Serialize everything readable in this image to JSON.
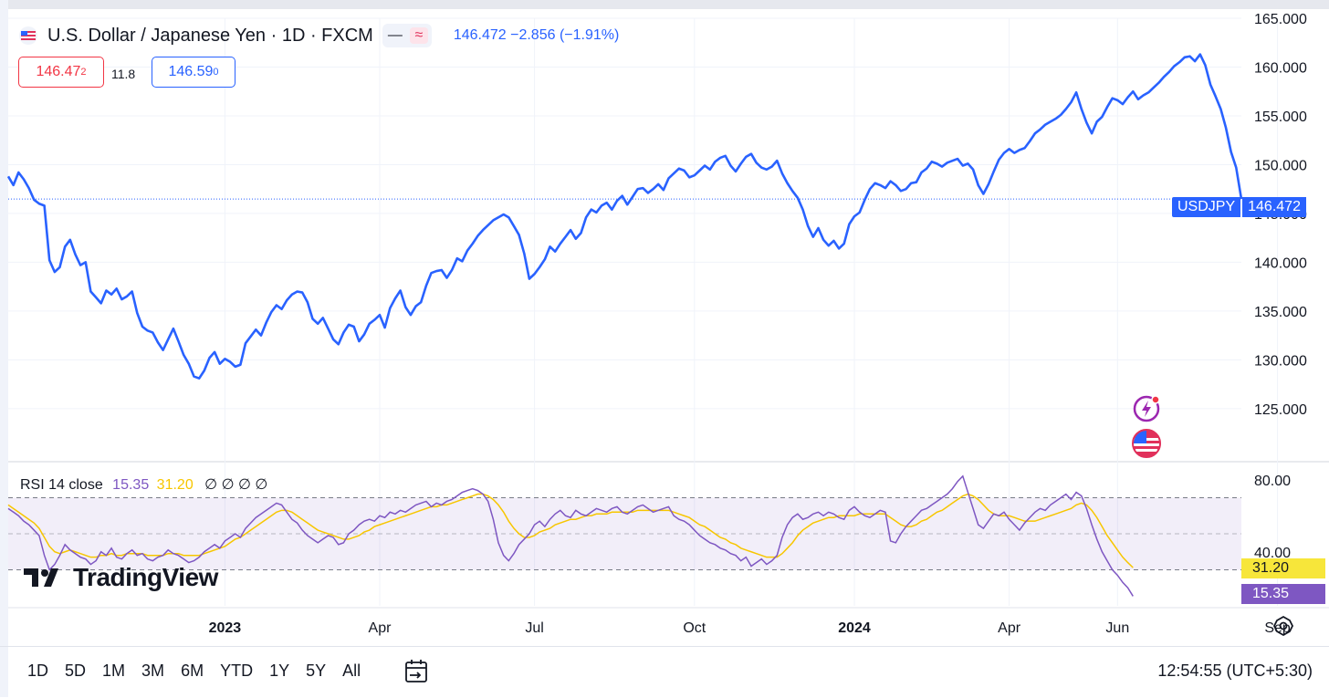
{
  "header": {
    "title": "U.S. Dollar / Japanese Yen · 1D · FXCM",
    "quote": "146.472 −2.856 (−1.91%)",
    "sell_price": "146.47",
    "sell_sup": "2",
    "spread": "11.8",
    "buy_price": "146.59",
    "buy_sup": "0"
  },
  "rsi_legend": {
    "name": "RSI 14 close",
    "rsi_value": "15.35",
    "ma_value": "31.20",
    "na_values": [
      "∅",
      "∅",
      "∅",
      "∅"
    ]
  },
  "tags": {
    "symbol": "USDJPY",
    "last_price": "146.472",
    "rsi_ma": "31.20",
    "rsi": "15.35"
  },
  "watermark": "TradingView",
  "time_ranges": [
    "1D",
    "5D",
    "1M",
    "3M",
    "6M",
    "YTD",
    "1Y",
    "5Y",
    "All"
  ],
  "clock": "12:54:55 (UTC+5:30)",
  "colors": {
    "price_line": "#2962ff",
    "rsi_line": "#7e57c2",
    "rsi_ma_line": "#f7c600",
    "rsi_band": "#7e57c2",
    "sell": "#f23645"
  },
  "icons": [
    "flag-icon",
    "lightning-icon",
    "us-flag-icon",
    "calendar-icon",
    "settings-icon"
  ],
  "chart_data": [
    {
      "type": "line",
      "title": "U.S. Dollar / Japanese Yen · 1D · FXCM",
      "series_name": "USDJPY",
      "ylim": [
        120.5,
        165
      ],
      "y_ticks": [
        "125.000",
        "130.000",
        "135.000",
        "140.000",
        "145.000",
        "150.000",
        "155.000",
        "160.000",
        "165.000"
      ],
      "y_tick_values": [
        125,
        130,
        135,
        140,
        145,
        150,
        155,
        160,
        165
      ],
      "x_tick_labels": [
        "2023",
        "Apr",
        "Jul",
        "Oct",
        "2024",
        "Apr",
        "Jun",
        "Sep"
      ],
      "x_tick_index": [
        42,
        72,
        102,
        133,
        164,
        194,
        215,
        246
      ],
      "last_value": 146.472,
      "x_count": 240,
      "values": [
        148.8,
        147.9,
        149.2,
        148.5,
        147.6,
        146.4,
        146.0,
        145.8,
        140.2,
        139.0,
        139.5,
        141.6,
        142.3,
        140.8,
        139.7,
        140.0,
        137.0,
        136.4,
        135.8,
        137.1,
        136.7,
        137.3,
        136.2,
        136.5,
        137.0,
        134.8,
        133.4,
        133.0,
        132.8,
        131.8,
        131.0,
        132.1,
        133.2,
        131.9,
        130.5,
        129.6,
        128.3,
        128.1,
        128.9,
        130.2,
        130.8,
        129.6,
        130.1,
        129.8,
        129.3,
        129.5,
        131.7,
        132.4,
        133.1,
        132.5,
        133.8,
        134.9,
        135.6,
        135.2,
        136.1,
        136.7,
        137.0,
        136.9,
        135.9,
        134.2,
        133.7,
        134.3,
        133.2,
        132.1,
        131.6,
        132.8,
        133.6,
        133.4,
        131.9,
        132.6,
        133.7,
        134.1,
        134.6,
        133.3,
        135.3,
        136.3,
        137.1,
        135.4,
        134.6,
        135.5,
        135.9,
        137.6,
        138.9,
        139.1,
        139.2,
        138.4,
        139.2,
        140.4,
        140.1,
        141.2,
        141.9,
        142.7,
        143.3,
        143.8,
        144.3,
        144.6,
        144.9,
        144.6,
        143.7,
        142.8,
        140.9,
        138.3,
        138.8,
        139.5,
        140.3,
        141.6,
        141.1,
        141.9,
        142.6,
        143.3,
        142.4,
        143.0,
        144.6,
        145.4,
        145.1,
        145.8,
        146.1,
        145.4,
        146.3,
        146.8,
        145.9,
        146.7,
        147.5,
        147.6,
        147.1,
        147.5,
        148.0,
        147.4,
        148.6,
        149.1,
        149.6,
        149.4,
        148.7,
        148.9,
        149.4,
        149.9,
        149.5,
        150.3,
        150.7,
        150.9,
        149.9,
        149.3,
        150.1,
        150.8,
        151.1,
        150.2,
        149.7,
        149.5,
        149.8,
        150.4,
        149.1,
        148.1,
        147.3,
        146.6,
        145.4,
        143.7,
        142.6,
        143.5,
        142.3,
        141.7,
        142.2,
        141.4,
        141.9,
        143.9,
        144.7,
        145.1,
        146.4,
        147.5,
        148.1,
        147.9,
        147.6,
        148.3,
        147.9,
        147.3,
        147.5,
        148.1,
        148.2,
        149.2,
        149.6,
        150.3,
        150.1,
        149.8,
        150.2,
        150.4,
        150.6,
        149.9,
        150.1,
        149.5,
        147.9,
        147.0,
        148.0,
        149.3,
        150.5,
        151.2,
        151.6,
        151.2,
        151.5,
        151.7,
        152.4,
        153.2,
        153.6,
        154.1,
        154.4,
        154.7,
        155.1,
        155.7,
        156.4,
        157.4,
        155.7,
        154.3,
        153.2,
        154.4,
        154.9,
        155.9,
        156.8,
        156.6,
        156.2,
        156.9,
        157.5,
        156.7,
        157.1,
        157.4,
        157.9,
        158.4,
        159.0,
        159.5,
        160.1,
        160.5,
        161.0,
        161.1,
        160.6,
        161.3,
        160.2,
        158.2,
        157.0,
        155.7,
        153.8,
        151.3,
        149.7,
        146.472
      ],
      "reference_value": 146.472
    },
    {
      "type": "line",
      "title": "RSI 14 close",
      "series": [
        {
          "name": "RSI",
          "last": 15.35
        },
        {
          "name": "RSI-based MA",
          "last": 31.2
        }
      ],
      "ylim": [
        10,
        90
      ],
      "y_ticks": [
        "40.00",
        "80.00"
      ],
      "y_tick_values": [
        40,
        80
      ],
      "band": [
        30,
        70
      ],
      "midline": 50,
      "x_count": 240,
      "rsi": [
        64,
        62,
        60,
        57,
        55,
        52,
        49,
        38,
        30,
        33,
        38,
        44,
        41,
        39,
        37,
        36,
        33,
        35,
        40,
        38,
        42,
        37,
        36,
        39,
        41,
        38,
        39,
        36,
        35,
        37,
        38,
        41,
        39,
        38,
        36,
        34,
        35,
        37,
        40,
        42,
        44,
        42,
        46,
        48,
        50,
        48,
        53,
        56,
        59,
        61,
        63,
        65,
        67,
        66,
        62,
        58,
        56,
        52,
        49,
        47,
        45,
        47,
        49,
        48,
        44,
        45,
        50,
        52,
        55,
        57,
        58,
        57,
        60,
        59,
        62,
        61,
        63,
        62,
        64,
        66,
        67,
        68,
        65,
        67,
        66,
        68,
        69,
        71,
        73,
        74,
        75,
        74,
        72,
        68,
        58,
        45,
        38,
        35,
        39,
        44,
        47,
        50,
        55,
        57,
        54,
        58,
        61,
        63,
        60,
        59,
        63,
        61,
        60,
        62,
        64,
        63,
        62,
        64,
        65,
        62,
        61,
        63,
        65,
        66,
        64,
        62,
        63,
        64,
        65,
        60,
        58,
        57,
        55,
        52,
        49,
        47,
        45,
        44,
        42,
        41,
        39,
        38,
        35,
        37,
        32,
        34,
        36,
        33,
        35,
        38,
        48,
        55,
        59,
        61,
        58,
        59,
        61,
        62,
        60,
        62,
        61,
        59,
        58,
        63,
        65,
        62,
        60,
        59,
        61,
        63,
        62,
        46,
        45,
        50,
        54,
        57,
        60,
        63,
        64,
        66,
        68,
        70,
        72,
        75,
        79,
        82,
        73,
        64,
        55,
        53,
        57,
        61,
        60,
        62,
        58,
        55,
        52,
        56,
        59,
        62,
        64,
        63,
        66,
        68,
        70,
        72,
        69,
        73,
        71,
        64,
        55,
        47,
        40,
        35,
        30,
        27,
        23,
        20,
        15.35
      ],
      "ma": [
        66,
        64,
        62,
        60,
        58,
        56,
        53,
        48,
        43,
        40,
        39,
        40,
        41,
        40,
        39,
        38,
        37,
        37,
        38,
        38,
        39,
        38,
        38,
        39,
        39,
        39,
        39,
        38,
        38,
        38,
        38,
        39,
        39,
        39,
        38,
        38,
        38,
        38,
        39,
        40,
        41,
        42,
        43,
        45,
        47,
        48,
        50,
        52,
        54,
        56,
        58,
        60,
        62,
        63,
        63,
        62,
        60,
        58,
        56,
        54,
        52,
        51,
        50,
        49,
        48,
        47,
        47,
        48,
        49,
        51,
        52,
        54,
        55,
        56,
        57,
        58,
        59,
        60,
        61,
        62,
        63,
        64,
        65,
        65,
        66,
        66,
        67,
        68,
        69,
        70,
        71,
        72,
        72,
        71,
        69,
        66,
        62,
        57,
        53,
        50,
        48,
        48,
        49,
        51,
        52,
        53,
        55,
        56,
        57,
        58,
        58,
        59,
        60,
        60,
        61,
        61,
        61,
        62,
        62,
        62,
        62,
        62,
        63,
        63,
        63,
        63,
        63,
        63,
        63,
        62,
        61,
        60,
        59,
        57,
        55,
        54,
        52,
        50,
        48,
        47,
        45,
        44,
        42,
        41,
        40,
        39,
        38,
        37,
        37,
        37,
        39,
        42,
        45,
        49,
        52,
        54,
        56,
        57,
        58,
        59,
        59,
        60,
        60,
        60,
        60,
        61,
        61,
        61,
        61,
        61,
        61,
        59,
        57,
        55,
        54,
        54,
        55,
        57,
        58,
        60,
        62,
        63,
        65,
        67,
        69,
        71,
        72,
        71,
        69,
        66,
        63,
        61,
        60,
        60,
        60,
        59,
        58,
        57,
        57,
        57,
        58,
        59,
        60,
        61,
        62,
        63,
        64,
        66,
        67,
        66,
        63,
        59,
        54,
        49,
        45,
        41,
        37,
        34,
        31.2
      ]
    }
  ]
}
